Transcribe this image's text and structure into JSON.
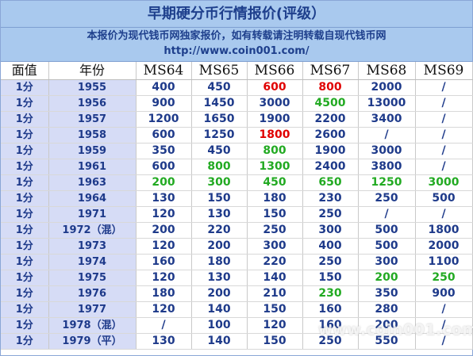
{
  "title": "早期硬分币行情报价(评级）",
  "notice": {
    "line1": "本报价为现代钱币网独家报价，如有转载请注明转载自现代钱币网",
    "line2": "http://www.coin001.com/"
  },
  "colors": {
    "header_bg": "#a9c9ee",
    "label_cell_bg": "#d6dcf6",
    "text_navy": "#1e3a8a",
    "text_red": "#e00000",
    "text_green": "#22aa22"
  },
  "table": {
    "headers": [
      "面值",
      "年份",
      "MS64",
      "MS65",
      "MS66",
      "MS67",
      "MS68",
      "MS69"
    ],
    "rows": [
      {
        "denomination": "1分",
        "year": "1955",
        "prices": [
          {
            "v": "400",
            "c": "navy"
          },
          {
            "v": "450",
            "c": "navy"
          },
          {
            "v": "600",
            "c": "red"
          },
          {
            "v": "800",
            "c": "red"
          },
          {
            "v": "2000",
            "c": "navy"
          },
          {
            "v": "/",
            "c": "navy"
          }
        ]
      },
      {
        "denomination": "1分",
        "year": "1956",
        "prices": [
          {
            "v": "900",
            "c": "navy"
          },
          {
            "v": "1450",
            "c": "navy"
          },
          {
            "v": "3000",
            "c": "navy"
          },
          {
            "v": "4500",
            "c": "green"
          },
          {
            "v": "13000",
            "c": "navy"
          },
          {
            "v": "/",
            "c": "navy"
          }
        ]
      },
      {
        "denomination": "1分",
        "year": "1957",
        "prices": [
          {
            "v": "1200",
            "c": "navy"
          },
          {
            "v": "1650",
            "c": "navy"
          },
          {
            "v": "1900",
            "c": "navy"
          },
          {
            "v": "2200",
            "c": "navy"
          },
          {
            "v": "3400",
            "c": "navy"
          },
          {
            "v": "/",
            "c": "navy"
          }
        ]
      },
      {
        "denomination": "1分",
        "year": "1958",
        "prices": [
          {
            "v": "600",
            "c": "navy"
          },
          {
            "v": "1250",
            "c": "navy"
          },
          {
            "v": "1800",
            "c": "red"
          },
          {
            "v": "2600",
            "c": "navy"
          },
          {
            "v": "/",
            "c": "navy"
          },
          {
            "v": "/",
            "c": "navy"
          }
        ]
      },
      {
        "denomination": "1分",
        "year": "1959",
        "prices": [
          {
            "v": "350",
            "c": "navy"
          },
          {
            "v": "450",
            "c": "navy"
          },
          {
            "v": "800",
            "c": "green"
          },
          {
            "v": "1900",
            "c": "navy"
          },
          {
            "v": "3000",
            "c": "navy"
          },
          {
            "v": "/",
            "c": "navy"
          }
        ]
      },
      {
        "denomination": "1分",
        "year": "1961",
        "prices": [
          {
            "v": "600",
            "c": "navy"
          },
          {
            "v": "800",
            "c": "green"
          },
          {
            "v": "1300",
            "c": "green"
          },
          {
            "v": "2400",
            "c": "navy"
          },
          {
            "v": "3800",
            "c": "navy"
          },
          {
            "v": "/",
            "c": "navy"
          }
        ]
      },
      {
        "denomination": "1分",
        "year": "1963",
        "prices": [
          {
            "v": "200",
            "c": "green"
          },
          {
            "v": "300",
            "c": "green"
          },
          {
            "v": "450",
            "c": "green"
          },
          {
            "v": "650",
            "c": "green"
          },
          {
            "v": "1250",
            "c": "green"
          },
          {
            "v": "3000",
            "c": "green"
          }
        ]
      },
      {
        "denomination": "1分",
        "year": "1964",
        "prices": [
          {
            "v": "130",
            "c": "navy"
          },
          {
            "v": "150",
            "c": "navy"
          },
          {
            "v": "180",
            "c": "navy"
          },
          {
            "v": "230",
            "c": "navy"
          },
          {
            "v": "250",
            "c": "navy"
          },
          {
            "v": "500",
            "c": "navy"
          }
        ]
      },
      {
        "denomination": "1分",
        "year": "1971",
        "prices": [
          {
            "v": "120",
            "c": "navy"
          },
          {
            "v": "130",
            "c": "navy"
          },
          {
            "v": "150",
            "c": "navy"
          },
          {
            "v": "250",
            "c": "navy"
          },
          {
            "v": "/",
            "c": "navy"
          },
          {
            "v": "/",
            "c": "navy"
          }
        ]
      },
      {
        "denomination": "1分",
        "year": "1972（混）",
        "prices": [
          {
            "v": "200",
            "c": "navy"
          },
          {
            "v": "220",
            "c": "navy"
          },
          {
            "v": "250",
            "c": "navy"
          },
          {
            "v": "300",
            "c": "navy"
          },
          {
            "v": "500",
            "c": "navy"
          },
          {
            "v": "1800",
            "c": "navy"
          }
        ]
      },
      {
        "denomination": "1分",
        "year": "1973",
        "prices": [
          {
            "v": "120",
            "c": "navy"
          },
          {
            "v": "200",
            "c": "navy"
          },
          {
            "v": "300",
            "c": "navy"
          },
          {
            "v": "400",
            "c": "navy"
          },
          {
            "v": "500",
            "c": "navy"
          },
          {
            "v": "2000",
            "c": "navy"
          }
        ]
      },
      {
        "denomination": "1分",
        "year": "1974",
        "prices": [
          {
            "v": "160",
            "c": "navy"
          },
          {
            "v": "180",
            "c": "navy"
          },
          {
            "v": "220",
            "c": "navy"
          },
          {
            "v": "250",
            "c": "navy"
          },
          {
            "v": "300",
            "c": "navy"
          },
          {
            "v": "1100",
            "c": "navy"
          }
        ]
      },
      {
        "denomination": "1分",
        "year": "1975",
        "prices": [
          {
            "v": "120",
            "c": "navy"
          },
          {
            "v": "130",
            "c": "navy"
          },
          {
            "v": "140",
            "c": "navy"
          },
          {
            "v": "150",
            "c": "navy"
          },
          {
            "v": "200",
            "c": "green"
          },
          {
            "v": "250",
            "c": "green"
          }
        ]
      },
      {
        "denomination": "1分",
        "year": "1976",
        "prices": [
          {
            "v": "180",
            "c": "navy"
          },
          {
            "v": "200",
            "c": "navy"
          },
          {
            "v": "210",
            "c": "navy"
          },
          {
            "v": "230",
            "c": "green"
          },
          {
            "v": "350",
            "c": "navy"
          },
          {
            "v": "900",
            "c": "navy"
          }
        ]
      },
      {
        "denomination": "1分",
        "year": "1977",
        "prices": [
          {
            "v": "120",
            "c": "navy"
          },
          {
            "v": "140",
            "c": "navy"
          },
          {
            "v": "150",
            "c": "navy"
          },
          {
            "v": "160",
            "c": "navy"
          },
          {
            "v": "280",
            "c": "navy"
          },
          {
            "v": "/",
            "c": "navy"
          }
        ]
      },
      {
        "denomination": "1分",
        "year": "1978（混）",
        "prices": [
          {
            "v": "/",
            "c": "navy"
          },
          {
            "v": "100",
            "c": "navy"
          },
          {
            "v": "120",
            "c": "navy"
          },
          {
            "v": "160",
            "c": "navy"
          },
          {
            "v": "200",
            "c": "navy"
          },
          {
            "v": "/",
            "c": "navy"
          }
        ]
      },
      {
        "denomination": "1分",
        "year": "1979（平）",
        "prices": [
          {
            "v": "130",
            "c": "navy"
          },
          {
            "v": "140",
            "c": "navy"
          },
          {
            "v": "150",
            "c": "navy"
          },
          {
            "v": "250",
            "c": "navy"
          },
          {
            "v": "550",
            "c": "navy"
          },
          {
            "v": "/",
            "c": "navy"
          }
        ]
      }
    ]
  },
  "watermark": "www.coin001.com"
}
